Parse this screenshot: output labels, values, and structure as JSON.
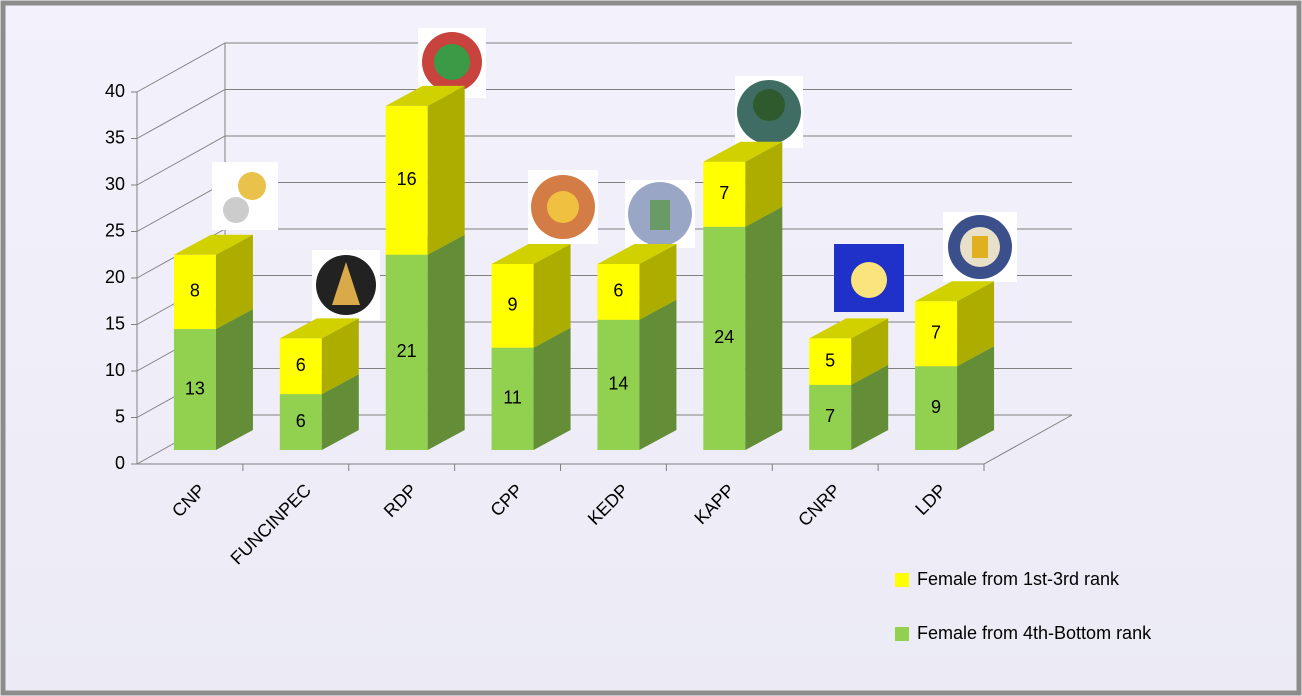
{
  "chart_data": {
    "type": "bar3d_stacked",
    "categories": [
      "CNP",
      "FUNCINPEC",
      "RDP",
      "CPP",
      "KEDP",
      "KAPP",
      "CNRP",
      "LDP"
    ],
    "series": [
      {
        "name": "Female from 4th-Bottom rank",
        "color": "#92d050",
        "values": [
          13,
          6,
          21,
          11,
          14,
          24,
          7,
          9
        ]
      },
      {
        "name": "Female from 1st-3rd rank",
        "color": "#ffff00",
        "values": [
          8,
          6,
          16,
          9,
          6,
          7,
          5,
          7
        ]
      }
    ],
    "ylim": [
      0,
      40
    ],
    "yticks": [
      0,
      5,
      10,
      15,
      20,
      25,
      30,
      35,
      40
    ],
    "grid": true,
    "legend": "bottom-right"
  }
}
